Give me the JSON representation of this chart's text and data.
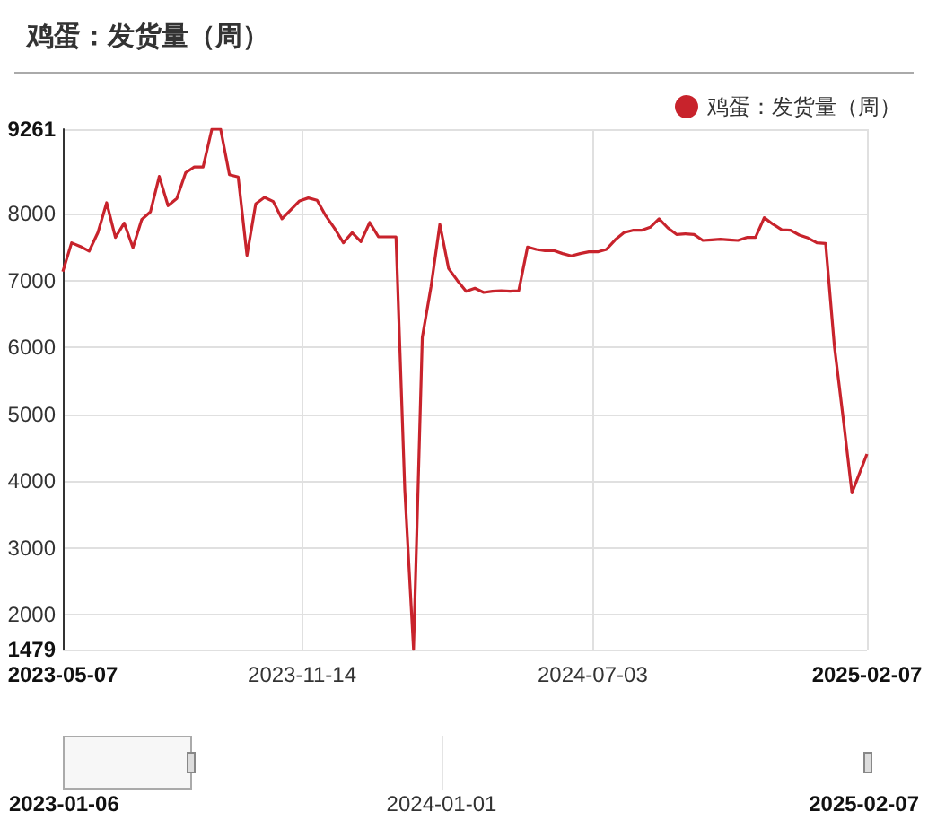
{
  "chart_data": {
    "type": "line",
    "title": "鸡蛋：发货量（周）",
    "x": [
      "2023-05-07",
      "2023-05-14",
      "2023-05-21",
      "2023-05-28",
      "2023-06-04",
      "2023-06-11",
      "2023-06-18",
      "2023-06-25",
      "2023-07-02",
      "2023-07-09",
      "2023-07-16",
      "2023-07-23",
      "2023-07-30",
      "2023-08-06",
      "2023-08-13",
      "2023-08-20",
      "2023-08-27",
      "2023-09-03",
      "2023-09-10",
      "2023-09-17",
      "2023-09-24",
      "2023-10-01",
      "2023-10-08",
      "2023-10-15",
      "2023-10-22",
      "2023-10-29",
      "2023-11-05",
      "2023-11-12",
      "2023-11-19",
      "2023-11-26",
      "2023-12-03",
      "2023-12-10",
      "2023-12-17",
      "2023-12-24",
      "2023-12-31",
      "2024-01-07",
      "2024-01-14",
      "2024-01-21",
      "2024-01-28",
      "2024-02-04",
      "2024-02-11",
      "2024-02-18",
      "2024-02-25",
      "2024-03-03",
      "2024-03-10",
      "2024-03-17",
      "2024-03-24",
      "2024-03-31",
      "2024-04-07",
      "2024-04-14",
      "2024-04-21",
      "2024-04-28",
      "2024-05-05",
      "2024-05-12",
      "2024-05-19",
      "2024-05-26",
      "2024-06-02",
      "2024-06-09",
      "2024-06-16",
      "2024-06-23",
      "2024-06-30",
      "2024-07-07",
      "2024-07-14",
      "2024-07-21",
      "2024-07-28",
      "2024-08-04",
      "2024-08-11",
      "2024-08-18",
      "2024-08-25",
      "2024-09-01",
      "2024-09-08",
      "2024-09-15",
      "2024-09-22",
      "2024-09-29",
      "2024-10-06",
      "2024-10-13",
      "2024-10-20",
      "2024-10-27",
      "2024-11-03",
      "2024-11-10",
      "2024-11-17",
      "2024-11-24",
      "2024-12-01",
      "2024-12-08",
      "2024-12-15",
      "2024-12-22",
      "2024-12-29",
      "2025-01-05",
      "2025-01-12",
      "2025-01-19",
      "2025-01-26",
      "2025-02-07"
    ],
    "series": [
      {
        "name": "鸡蛋：发货量（周）",
        "color": "#c8232c",
        "values": [
          7132,
          7562,
          7508,
          7437,
          7714,
          8161,
          7642,
          7857,
          7490,
          7910,
          8027,
          8555,
          8117,
          8224,
          8608,
          8697,
          8697,
          9261,
          9261,
          8581,
          8546,
          7374,
          8143,
          8241,
          8179,
          7920,
          8054,
          8188,
          8233,
          8197,
          7964,
          7776,
          7562,
          7714,
          7580,
          7866,
          7651,
          7651,
          7651,
          3867,
          1479,
          6148,
          6909,
          7839,
          7177,
          6998,
          6837,
          6882,
          6819,
          6837,
          6846,
          6837,
          6846,
          7499,
          7463,
          7445,
          7445,
          7401,
          7365,
          7401,
          7427,
          7427,
          7463,
          7606,
          7714,
          7749,
          7749,
          7794,
          7920,
          7785,
          7687,
          7696,
          7687,
          7597,
          7606,
          7615,
          7606,
          7597,
          7642,
          7642,
          7938,
          7839,
          7758,
          7749,
          7678,
          7633,
          7562,
          7553,
          6014,
          4941,
          3823,
          4404
        ]
      }
    ],
    "xlim": [
      "2023-05-07",
      "2025-02-07"
    ],
    "xticks": [
      "2023-05-07",
      "2023-11-14",
      "2024-07-03",
      "2025-02-07"
    ],
    "ylim": [
      1479,
      9261
    ],
    "yticks": [
      1479,
      2000,
      3000,
      4000,
      5000,
      6000,
      7000,
      8000,
      9261
    ],
    "grid": true,
    "legend": "top right",
    "marker": "none",
    "line_style": "solid",
    "annotations": [
      "2023-01-06",
      "2024-01-01",
      "2025-02-07"
    ]
  }
}
